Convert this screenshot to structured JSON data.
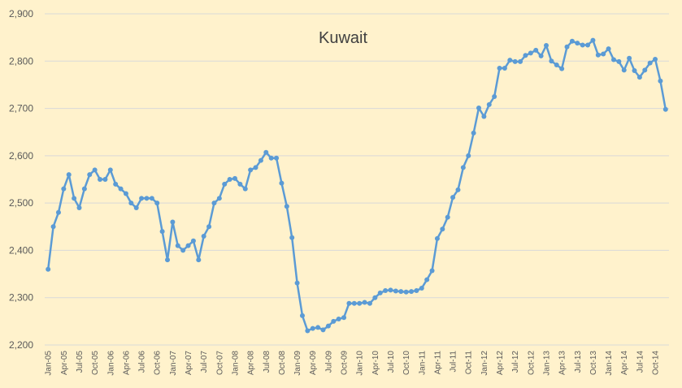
{
  "chart_data": {
    "type": "line",
    "title": "Kuwait",
    "xlabel": "",
    "ylabel": "",
    "ylim": [
      2200,
      2900
    ],
    "yticks": [
      2200,
      2300,
      2400,
      2500,
      2600,
      2700,
      2800,
      2900
    ],
    "ytick_labels": [
      "2,200",
      "2,300",
      "2,400",
      "2,500",
      "2,600",
      "2,700",
      "2,800",
      "2,900"
    ],
    "grid": true,
    "legend": "none",
    "line_color": "#5b9bd5",
    "background": "#fff2cc",
    "x_start": "Jan-05",
    "xtick_labels": [
      "Jan-05",
      "Apr-05",
      "Jul-05",
      "Oct-05",
      "Jan-06",
      "Apr-06",
      "Jul-06",
      "Oct-06",
      "Jan-07",
      "Apr-07",
      "Jul-07",
      "Oct-07",
      "Jan-08",
      "Apr-08",
      "Jul-08",
      "Oct-08",
      "Jan-09",
      "Apr-09",
      "Jul-09",
      "Oct-09",
      "Jan-10",
      "Apr-10",
      "Jul-10",
      "Oct-10",
      "Jan-11",
      "Apr-11",
      "Jul-11",
      "Oct-11",
      "Jan-12",
      "Apr-12",
      "Jul-12",
      "Oct-12",
      "Jan-13",
      "Apr-13",
      "Jul-13",
      "Oct-13",
      "Jan-14",
      "Apr-14",
      "Jul-14",
      "Oct-14"
    ],
    "values": [
      2360,
      2450,
      2480,
      2530,
      2560,
      2510,
      2490,
      2530,
      2560,
      2570,
      2550,
      2550,
      2570,
      2540,
      2530,
      2520,
      2500,
      2490,
      2510,
      2510,
      2510,
      2500,
      2440,
      2380,
      2460,
      2410,
      2400,
      2410,
      2420,
      2380,
      2430,
      2450,
      2500,
      2510,
      2540,
      2550,
      2552,
      2540,
      2530,
      2570,
      2575,
      2590,
      2607,
      2595,
      2595,
      2542,
      2493,
      2427,
      2331,
      2262,
      2230,
      2235,
      2237,
      2232,
      2240,
      2250,
      2255,
      2258,
      2288,
      2288,
      2288,
      2290,
      2288,
      2300,
      2310,
      2315,
      2316,
      2314,
      2313,
      2312,
      2313,
      2315,
      2320,
      2338,
      2357,
      2425,
      2445,
      2470,
      2512,
      2528,
      2575,
      2600,
      2648,
      2701,
      2683,
      2708,
      2725,
      2785,
      2785,
      2802,
      2799,
      2799,
      2812,
      2817,
      2823,
      2811,
      2833,
      2800,
      2792,
      2784,
      2830,
      2842,
      2838,
      2834,
      2834,
      2844,
      2813,
      2815,
      2826,
      2803,
      2799,
      2781,
      2806,
      2780,
      2766,
      2781,
      2796,
      2804,
      2758,
      2698
    ]
  }
}
